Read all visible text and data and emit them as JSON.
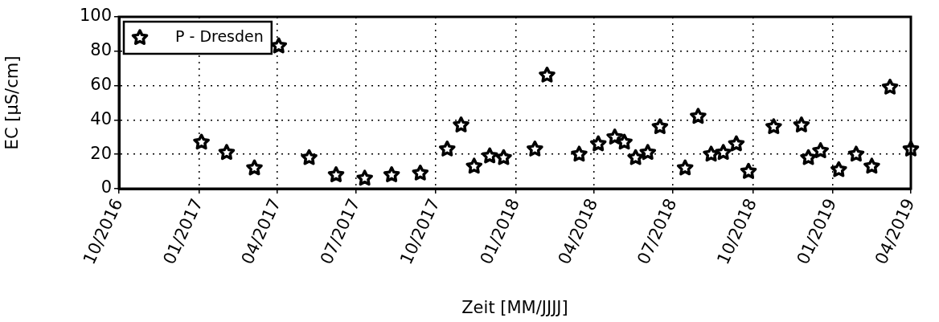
{
  "chart_data": {
    "type": "scatter",
    "xlabel": "Zeit [MM/JJJJ]",
    "ylabel": "EC [µS/cm]",
    "xlim": [
      "2016-10-01",
      "2019-04-01"
    ],
    "xticks": [
      {
        "value": "2016-10-01",
        "label": "10/2016"
      },
      {
        "value": "2017-01-01",
        "label": "01/2017"
      },
      {
        "value": "2017-04-01",
        "label": "04/2017"
      },
      {
        "value": "2017-07-01",
        "label": "07/2017"
      },
      {
        "value": "2017-10-01",
        "label": "10/2017"
      },
      {
        "value": "2018-01-01",
        "label": "01/2018"
      },
      {
        "value": "2018-04-01",
        "label": "04/2018"
      },
      {
        "value": "2018-07-01",
        "label": "07/2018"
      },
      {
        "value": "2018-10-01",
        "label": "10/2018"
      },
      {
        "value": "2019-01-01",
        "label": "01/2019"
      },
      {
        "value": "2019-04-01",
        "label": "04/2019"
      }
    ],
    "ylim": [
      0,
      100
    ],
    "yticks": [
      0,
      20,
      40,
      60,
      80,
      100
    ],
    "grid": true,
    "legend": "top left",
    "marker": "star",
    "series": [
      {
        "name": "P - Dresden",
        "color": "#000000",
        "x": [
          "2017-01-04",
          "2017-02-02",
          "2017-03-06",
          "2017-04-03",
          "2017-05-08",
          "2017-06-08",
          "2017-07-11",
          "2017-08-11",
          "2017-09-13",
          "2017-10-14",
          "2017-10-30",
          "2017-11-14",
          "2017-12-02",
          "2017-12-18",
          "2018-01-23",
          "2018-02-06",
          "2018-03-15",
          "2018-04-06",
          "2018-04-25",
          "2018-05-06",
          "2018-05-19",
          "2018-06-02",
          "2018-06-16",
          "2018-07-15",
          "2018-07-30",
          "2018-08-14",
          "2018-08-28",
          "2018-09-12",
          "2018-09-26",
          "2018-10-25",
          "2018-11-26",
          "2018-12-04",
          "2018-12-18",
          "2019-01-08",
          "2019-01-28",
          "2019-02-15",
          "2019-03-08",
          "2019-04-01"
        ],
        "values": [
          27,
          21,
          12,
          83,
          18,
          8,
          6,
          8,
          9,
          23,
          37,
          13,
          19,
          18,
          23,
          66,
          20,
          26,
          30,
          27,
          18,
          21,
          36,
          12,
          42,
          20,
          21,
          26,
          10,
          36,
          37,
          18,
          22,
          11,
          20,
          13,
          59,
          23
        ]
      }
    ]
  }
}
